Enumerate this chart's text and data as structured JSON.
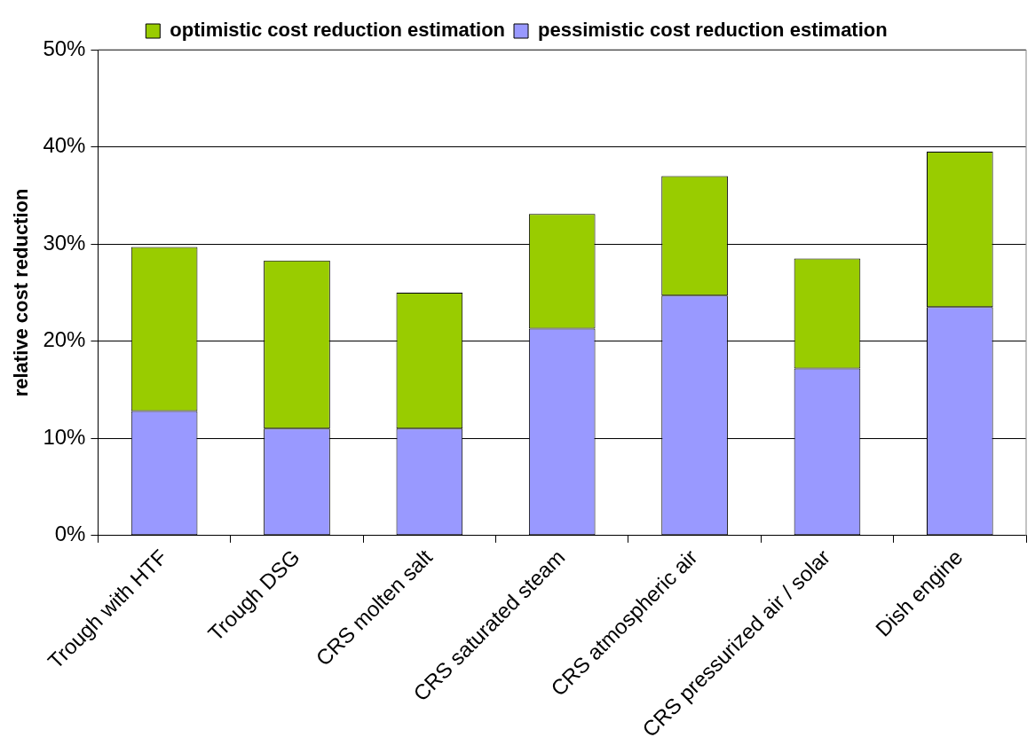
{
  "chart_data": {
    "type": "bar",
    "ylabel": "relative cost reduction",
    "categories": [
      "Trough with HTF",
      "Trough DSG",
      "CRS molten salt",
      "CRS saturated steam",
      "CRS atmospheric air",
      "CRS pressurized air / solar",
      "Dish engine"
    ],
    "series": [
      {
        "name": "pessimistic cost reduction estimation",
        "color": "#9999ff",
        "values": [
          12.8,
          11.0,
          11.0,
          21.3,
          24.7,
          17.2,
          23.5
        ]
      },
      {
        "name": "optimistic cost reduction estimation",
        "color": "#99cc00",
        "values": [
          16.9,
          17.3,
          14.0,
          11.8,
          12.3,
          11.3,
          16.0
        ]
      }
    ],
    "stacked": true,
    "ylim": [
      0,
      50
    ],
    "yticks": [
      {
        "value": 0,
        "label": "0%"
      },
      {
        "value": 10,
        "label": "10%"
      },
      {
        "value": 20,
        "label": "20%"
      },
      {
        "value": 30,
        "label": "30%"
      },
      {
        "value": 40,
        "label": "40%"
      },
      {
        "value": 50,
        "label": "50%"
      }
    ],
    "grid": "y",
    "legend": "top"
  }
}
